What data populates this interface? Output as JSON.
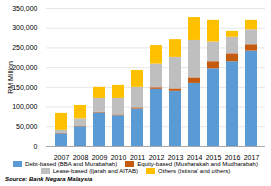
{
  "chart_data": {
    "type": "bar",
    "stacked": true,
    "categories": [
      "2007",
      "2008",
      "2009",
      "2010",
      "2011",
      "2012",
      "2013",
      "2014",
      "2015",
      "2016",
      "2017"
    ],
    "series": [
      {
        "name": "Debt-based (BBA and Murabahah)",
        "color": "#5b9bd5",
        "values": [
          32000,
          50000,
          85000,
          78000,
          95000,
          145000,
          140000,
          160000,
          197000,
          215000,
          242000
        ]
      },
      {
        "name": "Equity-based (Musharakah and Mudharabah)",
        "color": "#c55a11",
        "values": [
          1000,
          2000,
          2000,
          2000,
          3000,
          4000,
          6000,
          14000,
          18000,
          20000,
          16000
        ]
      },
      {
        "name": "Lease-based (Ijarah and AITAB)",
        "color": "#bfbfbf",
        "values": [
          8000,
          18000,
          35000,
          42000,
          52000,
          60000,
          80000,
          95000,
          50000,
          42000,
          38000
        ]
      },
      {
        "name": "Others (Istisna' and others)",
        "color": "#ffc000",
        "values": [
          43000,
          34000,
          28000,
          33000,
          43000,
          47000,
          45000,
          58000,
          55000,
          15000,
          24000
        ]
      }
    ],
    "ylabel": "RM Million",
    "ylim": [
      0,
      350000
    ],
    "yticks": [
      0,
      {
        "value": 50000,
        "label": "50,000"
      },
      {
        "value": 100000,
        "label": "100,000"
      },
      {
        "value": 150000,
        "label": "150,000"
      },
      {
        "value": 200000,
        "label": "200,000"
      },
      {
        "value": 250000,
        "label": "250,000"
      },
      {
        "value": 300000,
        "label": "300,000"
      },
      {
        "value": 350000,
        "label": "350,000"
      }
    ],
    "grid": true,
    "legend": "bottom",
    "annotation": "Source: Bank Negara Malaysia"
  }
}
